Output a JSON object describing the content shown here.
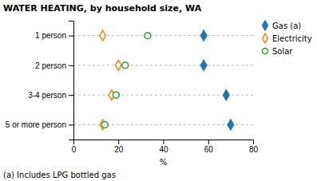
{
  "chart_data": {
    "type": "dot",
    "title": "WATER HEATING, by household size, WA",
    "annotations": [
      "(a) Includes LPG bottled gas"
    ],
    "xlabel": "%",
    "categories": [
      "1 person",
      "2 person",
      "3-4 person",
      "5 or more person"
    ],
    "series": [
      {
        "name": "Gas (a)",
        "marker": "diamond",
        "values": [
          58,
          58,
          68,
          70
        ]
      },
      {
        "name": "Electricity",
        "marker": "diamond-open",
        "values": [
          13,
          20,
          17,
          13
        ]
      },
      {
        "name": "Solar",
        "marker": "circle-open",
        "values": [
          33,
          23,
          19,
          14
        ]
      }
    ],
    "xlim": [
      0,
      80
    ],
    "xticks": [
      0,
      20,
      40,
      60,
      80
    ],
    "grid": true,
    "legend": "right"
  }
}
